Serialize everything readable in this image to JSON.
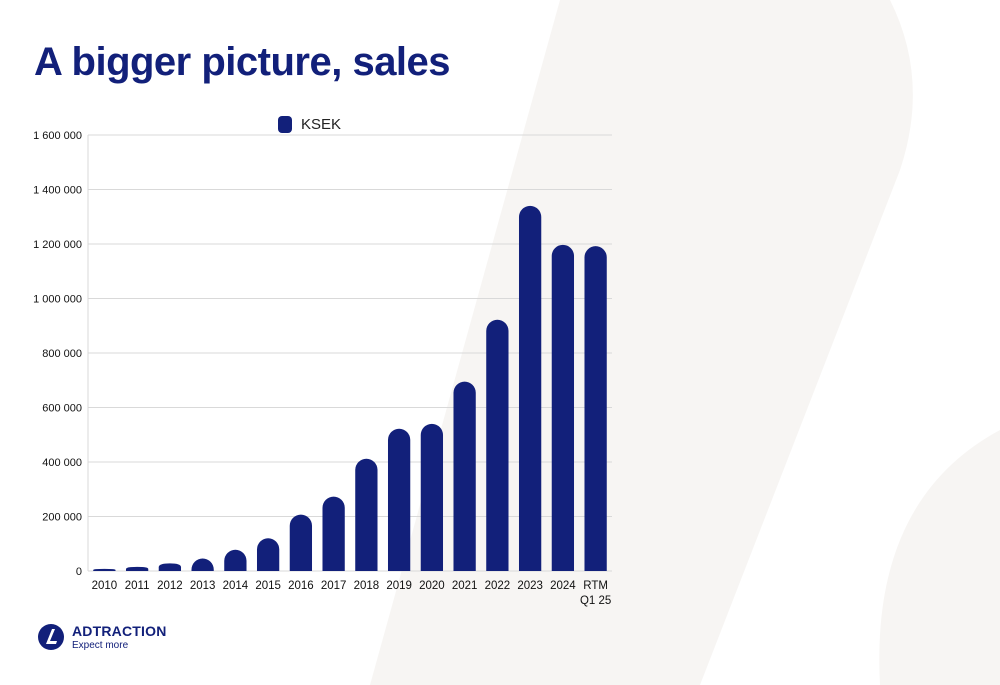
{
  "slide": {
    "title": "A bigger picture, sales"
  },
  "colors": {
    "bar": "#12207a",
    "title": "#12207a",
    "grid": "#d9d9d9",
    "background_shape": "#f7f5f3"
  },
  "chart_data": {
    "type": "bar",
    "categories": [
      "2010",
      "2011",
      "2012",
      "2013",
      "2014",
      "2015",
      "2016",
      "2017",
      "2018",
      "2019",
      "2020",
      "2021",
      "2022",
      "2023",
      "2024",
      "RTM Q1 25"
    ],
    "series": [
      {
        "name": "KSEK",
        "values": [
          8000,
          15000,
          28000,
          46000,
          78000,
          120000,
          207000,
          273000,
          412000,
          522000,
          540000,
          695000,
          922000,
          1340000,
          1197000,
          1192000
        ]
      }
    ],
    "yticks": [
      "0",
      "200 000",
      "400 000",
      "600 000",
      "800 000",
      "1 000 000",
      "1 200 000",
      "1 400 000",
      "1 600 000"
    ],
    "ylim": [
      0,
      1600000
    ],
    "grid": true,
    "legend_position": "top-center"
  },
  "logo": {
    "name": "ADTRACTION",
    "tagline": "Expect more",
    "icon": "adtraction-logo-icon"
  }
}
